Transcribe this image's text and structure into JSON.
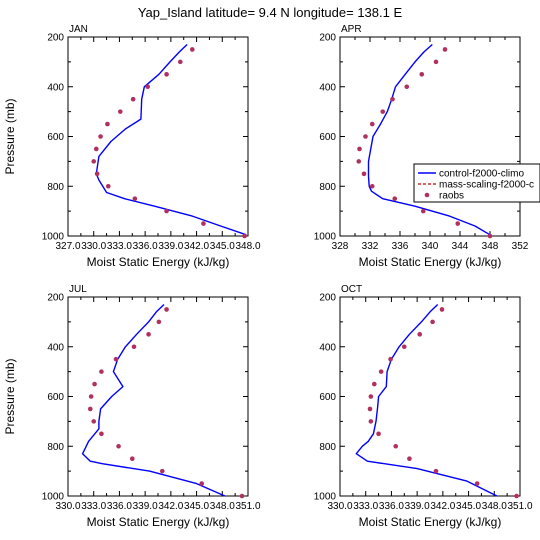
{
  "title": "Yap_Island  latitude= 9.4 N longitude= 138.1 E",
  "legend": {
    "entries": [
      {
        "label": "control-f2000-climo",
        "color": "#0000ff",
        "style": "solid-line"
      },
      {
        "label": "mass-scaling-f2000-c",
        "color": "#cc0000",
        "style": "dashed-line"
      },
      {
        "label": "raobs",
        "color": "#b03060",
        "style": "dot"
      }
    ]
  },
  "chart_data": [
    {
      "type": "line",
      "panel_label": "JAN",
      "xlabel": "Moist Static Energy (kJ/kg)",
      "ylabel": "Pressure (mb)",
      "xlim": [
        327.0,
        348.0
      ],
      "xticks": [
        327.0,
        330.0,
        333.0,
        336.0,
        339.0,
        342.0,
        345.0,
        348.0
      ],
      "xtick_labels": [
        "327.0",
        "330.0",
        "333.0",
        "336.0",
        "339.0",
        "342.0",
        "345.0",
        "348.0"
      ],
      "ylim": [
        200,
        1000
      ],
      "yticks": [
        200,
        400,
        600,
        800,
        1000
      ],
      "ytick_labels": [
        "200",
        "400",
        "600",
        "800",
        "1000"
      ],
      "show_ylabel": true,
      "series": [
        {
          "name": "control-f2000-climo",
          "color": "#0000ff",
          "x": [
            340.9,
            340.0,
            338.9,
            337.6,
            335.9,
            335.6,
            335.5,
            333.7,
            332.0,
            330.6,
            330.3,
            330.6,
            331.5,
            333.6,
            337.1,
            341.5,
            344.8,
            347.8
          ],
          "y": [
            230,
            260,
            300,
            350,
            400,
            450,
            530,
            570,
            620,
            680,
            750,
            775,
            825,
            850,
            880,
            920,
            960,
            995
          ]
        },
        {
          "name": "raobs",
          "color": "#b03060",
          "x": [
            341.5,
            340.1,
            338.5,
            336.3,
            334.6,
            333.1,
            331.6,
            330.8,
            330.3,
            330.0,
            330.4,
            331.7,
            334.8,
            338.5,
            342.8,
            347.6
          ],
          "y": [
            250,
            300,
            350,
            400,
            450,
            500,
            550,
            600,
            650,
            700,
            750,
            800,
            850,
            900,
            950,
            1000
          ]
        }
      ]
    },
    {
      "type": "line",
      "panel_label": "APR",
      "xlabel": "Moist Static Energy (kJ/kg)",
      "ylabel": "",
      "xlim": [
        328,
        352
      ],
      "xticks": [
        328,
        332,
        336,
        340,
        344,
        348,
        352
      ],
      "xtick_labels": [
        "328",
        "332",
        "336",
        "340",
        "344",
        "348",
        "352"
      ],
      "ylim": [
        200,
        1000
      ],
      "yticks": [
        200,
        400,
        600,
        800,
        1000
      ],
      "ytick_labels": [
        "200",
        "400",
        "600",
        "800",
        "1000"
      ],
      "show_ylabel": false,
      "series": [
        {
          "name": "control-f2000-climo",
          "color": "#0000ff",
          "x": [
            340.3,
            339.2,
            338.0,
            336.7,
            335.4,
            334.9,
            334.3,
            333.4,
            332.4,
            331.8,
            331.8,
            331.9,
            332.2,
            333.7,
            338.0,
            342.6,
            346.0,
            348.0
          ],
          "y": [
            230,
            260,
            300,
            350,
            400,
            450,
            500,
            550,
            600,
            700,
            760,
            800,
            820,
            850,
            880,
            920,
            960,
            995
          ]
        },
        {
          "name": "raobs",
          "color": "#b03060",
          "x": [
            342.0,
            340.8,
            338.9,
            336.9,
            335.0,
            333.7,
            332.3,
            331.4,
            330.6,
            330.5,
            331.2,
            332.3,
            335.3,
            339.1,
            343.7,
            348.0
          ],
          "y": [
            250,
            300,
            350,
            400,
            450,
            500,
            550,
            600,
            650,
            700,
            750,
            800,
            850,
            900,
            950,
            1000
          ]
        }
      ]
    },
    {
      "type": "line",
      "panel_label": "JUL",
      "xlabel": "Moist Static Energy (kJ/kg)",
      "ylabel": "Pressure (mb)",
      "xlim": [
        330.0,
        351.0
      ],
      "xticks": [
        330.0,
        333.0,
        336.0,
        339.0,
        342.0,
        345.0,
        348.0,
        351.0
      ],
      "xtick_labels": [
        "330.0",
        "333.0",
        "336.0",
        "339.0",
        "342.0",
        "345.0",
        "348.0",
        "351.0"
      ],
      "ylim": [
        200,
        1000
      ],
      "yticks": [
        200,
        400,
        600,
        800,
        1000
      ],
      "ytick_labels": [
        "200",
        "400",
        "600",
        "800",
        "1000"
      ],
      "show_ylabel": true,
      "series": [
        {
          "name": "control-f2000-climo",
          "color": "#0000ff",
          "x": [
            341.2,
            340.3,
            339.4,
            338.0,
            336.7,
            335.8,
            335.3,
            336.4,
            335.1,
            333.8,
            333.6,
            333.6,
            332.4,
            331.7,
            332.6,
            334.0,
            339.5,
            345.0,
            348.3
          ],
          "y": [
            230,
            260,
            300,
            350,
            400,
            450,
            500,
            560,
            600,
            650,
            700,
            730,
            780,
            830,
            860,
            870,
            900,
            950,
            1000
          ]
        },
        {
          "name": "raobs",
          "color": "#b03060",
          "x": [
            341.5,
            340.6,
            339.4,
            337.7,
            335.6,
            333.9,
            333.1,
            332.7,
            332.6,
            333.0,
            333.9,
            335.9,
            337.5,
            341.0,
            345.6,
            350.3
          ],
          "y": [
            250,
            300,
            350,
            400,
            450,
            500,
            550,
            600,
            650,
            700,
            750,
            800,
            850,
            900,
            950,
            1000
          ]
        }
      ]
    },
    {
      "type": "line",
      "panel_label": "OCT",
      "xlabel": "Moist Static Energy (kJ/kg)",
      "ylabel": "",
      "xlim": [
        330.0,
        351.0
      ],
      "xticks": [
        330.0,
        333.0,
        336.0,
        339.0,
        342.0,
        345.0,
        348.0,
        351.0
      ],
      "xtick_labels": [
        "330.0",
        "333.0",
        "336.0",
        "339.0",
        "342.0",
        "345.0",
        "348.0",
        "351.0"
      ],
      "ylim": [
        200,
        1000
      ],
      "yticks": [
        200,
        400,
        600,
        800,
        1000
      ],
      "ytick_labels": [
        "200",
        "400",
        "600",
        "800",
        "1000"
      ],
      "show_ylabel": false,
      "series": [
        {
          "name": "control-f2000-climo",
          "color": "#0000ff",
          "x": [
            341.4,
            340.5,
            339.5,
            338.1,
            336.9,
            336.0,
            335.5,
            335.4,
            334.5,
            334.4,
            334.2,
            333.9,
            333.3,
            332.6,
            331.9,
            333.2,
            339.0,
            344.8,
            348.3
          ],
          "y": [
            230,
            260,
            300,
            350,
            400,
            450,
            500,
            560,
            600,
            640,
            700,
            750,
            780,
            800,
            830,
            860,
            890,
            940,
            1000
          ]
        },
        {
          "name": "raobs",
          "color": "#b03060",
          "x": [
            341.9,
            340.8,
            339.3,
            337.5,
            335.9,
            334.8,
            334.0,
            333.6,
            333.5,
            333.6,
            334.5,
            336.5,
            338.1,
            341.2,
            346.0,
            350.6
          ],
          "y": [
            250,
            300,
            350,
            400,
            450,
            500,
            550,
            600,
            650,
            700,
            750,
            800,
            850,
            900,
            950,
            1000
          ]
        }
      ]
    }
  ]
}
